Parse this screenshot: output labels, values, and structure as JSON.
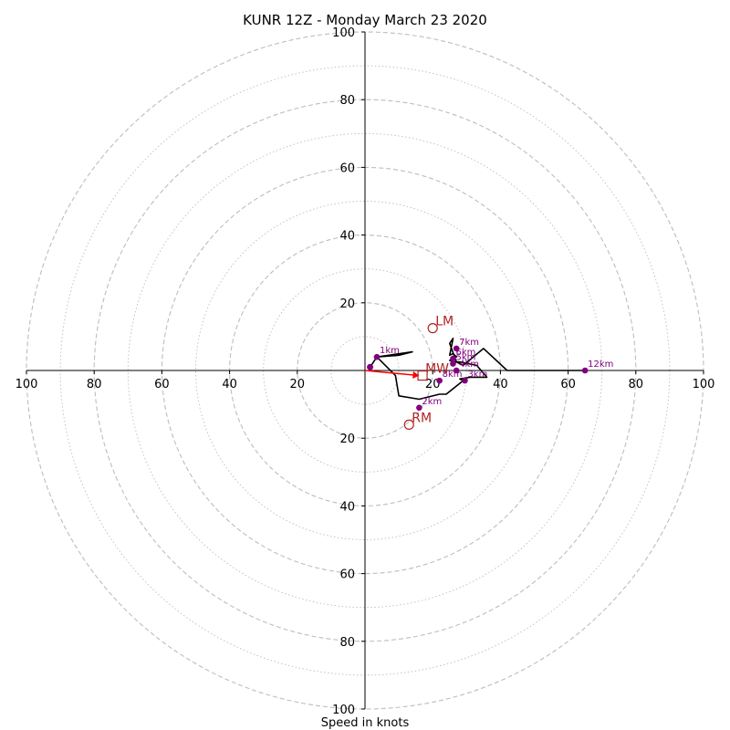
{
  "chart_data": {
    "type": "line",
    "title": "KUNR 12Z - Monday March 23 2020",
    "xlabel": "Speed in knots",
    "xlim": [
      -100,
      100
    ],
    "ylim": [
      -100,
      100
    ],
    "ring_values": [
      10,
      20,
      30,
      40,
      50,
      60,
      70,
      80,
      90,
      100
    ],
    "x_ticks": [
      {
        "v": -100,
        "label": "100"
      },
      {
        "v": -80,
        "label": "80"
      },
      {
        "v": -60,
        "label": "60"
      },
      {
        "v": -40,
        "label": "40"
      },
      {
        "v": -20,
        "label": "20"
      },
      {
        "v": 20,
        "label": "20"
      },
      {
        "v": 40,
        "label": "40"
      },
      {
        "v": 60,
        "label": "60"
      },
      {
        "v": 80,
        "label": "80"
      },
      {
        "v": 100,
        "label": "100"
      }
    ],
    "y_ticks": [
      {
        "v": 100,
        "label": "100"
      },
      {
        "v": 80,
        "label": "80"
      },
      {
        "v": 60,
        "label": "60"
      },
      {
        "v": 40,
        "label": "40"
      },
      {
        "v": 20,
        "label": "20"
      },
      {
        "v": -20,
        "label": "20"
      },
      {
        "v": -40,
        "label": "40"
      },
      {
        "v": -60,
        "label": "60"
      },
      {
        "v": -80,
        "label": "80"
      },
      {
        "v": -100,
        "label": "100"
      }
    ],
    "hodograph": {
      "color": "#000000",
      "x": [
        1.5,
        3.5,
        14,
        10,
        3.5,
        6,
        9,
        10,
        16,
        22,
        24,
        29,
        28,
        31,
        36,
        33,
        28,
        26,
        25,
        26,
        27,
        26,
        25,
        26,
        25,
        27,
        29,
        35,
        42,
        55,
        65
      ],
      "y": [
        1,
        4,
        5.5,
        4.5,
        4,
        1.5,
        -1.5,
        -7.5,
        -8.5,
        -7,
        -7,
        -3,
        -2.5,
        -2,
        -2,
        1.5,
        2.5,
        2.5,
        3,
        3.5,
        4,
        5,
        4.5,
        9.5,
        8,
        2.5,
        1.5,
        6.5,
        0,
        0,
        0
      ]
    },
    "height_markers": [
      {
        "label": "1km",
        "x": 3.5,
        "y": 4
      },
      {
        "label": "2km",
        "x": 16,
        "y": -11
      },
      {
        "label": "3km",
        "x": 29.5,
        "y": -3
      },
      {
        "label": "4km",
        "x": 27,
        "y": 0
      },
      {
        "label": "5km",
        "x": 26,
        "y": 2
      },
      {
        "label": "6km",
        "x": 26,
        "y": 3.5
      },
      {
        "label": "7km",
        "x": 27,
        "y": 6.5
      },
      {
        "label": "8km",
        "x": 22,
        "y": -3
      },
      {
        "label": "12km",
        "x": 65,
        "y": 0
      }
    ],
    "surface_point": {
      "x": 1.5,
      "y": 1
    },
    "storm_motion": [
      {
        "label": "LM",
        "x": 20,
        "y": 12.5,
        "shape": "circle"
      },
      {
        "label": "RM",
        "x": 13,
        "y": -16,
        "shape": "circle"
      },
      {
        "label": "MW",
        "x": 17,
        "y": -1.5,
        "shape": "square"
      }
    ],
    "mean_wind_vector": {
      "x": 16,
      "y": -1.5,
      "color": "#ff0000"
    },
    "colors": {
      "height_marker": "#800080",
      "storm_motion": "#b22222",
      "grid": "#bdbdbd"
    }
  }
}
